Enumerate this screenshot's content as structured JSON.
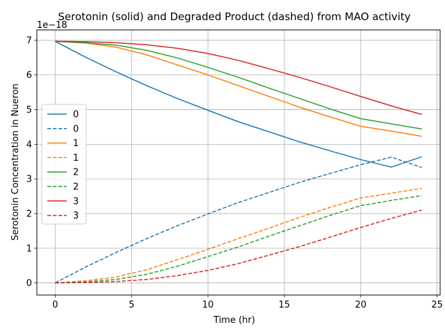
{
  "chart_data": {
    "type": "line",
    "title": "Serotonin (solid) and Degraded Product (dashed) from MAO activity",
    "xlabel": "Time (hr)",
    "ylabel": "Serotonin Concentration in Nueron",
    "offset_label": "1e−18",
    "xlim": [
      -1.2,
      25.2
    ],
    "ylim": [
      -0.35,
      7.3
    ],
    "xticks": [
      0,
      5,
      10,
      15,
      20,
      25
    ],
    "yticks": [
      0,
      1,
      2,
      3,
      4,
      5,
      6,
      7
    ],
    "grid": true,
    "legend_location": "center-left",
    "x": [
      0,
      2,
      4,
      6,
      8,
      10,
      12,
      14,
      16,
      18,
      20,
      22,
      24
    ],
    "series": [
      {
        "name": "0",
        "style": "solid",
        "color": "#1f77b4",
        "values": [
          6.97,
          6.51,
          6.09,
          5.69,
          5.32,
          4.98,
          4.65,
          4.36,
          4.07,
          3.81,
          3.56,
          3.34,
          3.64
        ]
      },
      {
        "name": "0",
        "style": "dashed",
        "color": "#1f77b4",
        "values": [
          0.0,
          0.46,
          0.88,
          1.28,
          1.65,
          1.99,
          2.32,
          2.61,
          2.9,
          3.16,
          3.41,
          3.63,
          3.33
        ]
      },
      {
        "name": "1",
        "style": "solid",
        "color": "#ff7f0e",
        "values": [
          6.97,
          6.92,
          6.8,
          6.58,
          6.29,
          6.0,
          5.69,
          5.38,
          5.07,
          4.79,
          4.52,
          4.38,
          4.23
        ]
      },
      {
        "name": "1",
        "style": "dashed",
        "color": "#ff7f0e",
        "values": [
          0.0,
          0.06,
          0.17,
          0.38,
          0.67,
          0.97,
          1.28,
          1.58,
          1.89,
          2.18,
          2.45,
          2.59,
          2.73
        ]
      },
      {
        "name": "2",
        "style": "solid",
        "color": "#2ca02c",
        "values": [
          6.97,
          6.93,
          6.86,
          6.71,
          6.49,
          6.22,
          5.93,
          5.62,
          5.32,
          5.02,
          4.74,
          4.59,
          4.44
        ]
      },
      {
        "name": "2",
        "style": "dashed",
        "color": "#2ca02c",
        "values": [
          0.0,
          0.03,
          0.1,
          0.25,
          0.48,
          0.76,
          1.04,
          1.35,
          1.65,
          1.95,
          2.23,
          2.38,
          2.52
        ]
      },
      {
        "name": "3",
        "style": "solid",
        "color": "#d62728",
        "values": [
          6.97,
          6.96,
          6.93,
          6.87,
          6.77,
          6.62,
          6.42,
          6.18,
          5.93,
          5.66,
          5.38,
          5.11,
          4.86
        ]
      },
      {
        "name": "3",
        "style": "dashed",
        "color": "#d62728",
        "values": [
          0.0,
          0.01,
          0.04,
          0.1,
          0.21,
          0.36,
          0.56,
          0.8,
          1.05,
          1.32,
          1.6,
          1.86,
          2.1
        ]
      }
    ]
  }
}
